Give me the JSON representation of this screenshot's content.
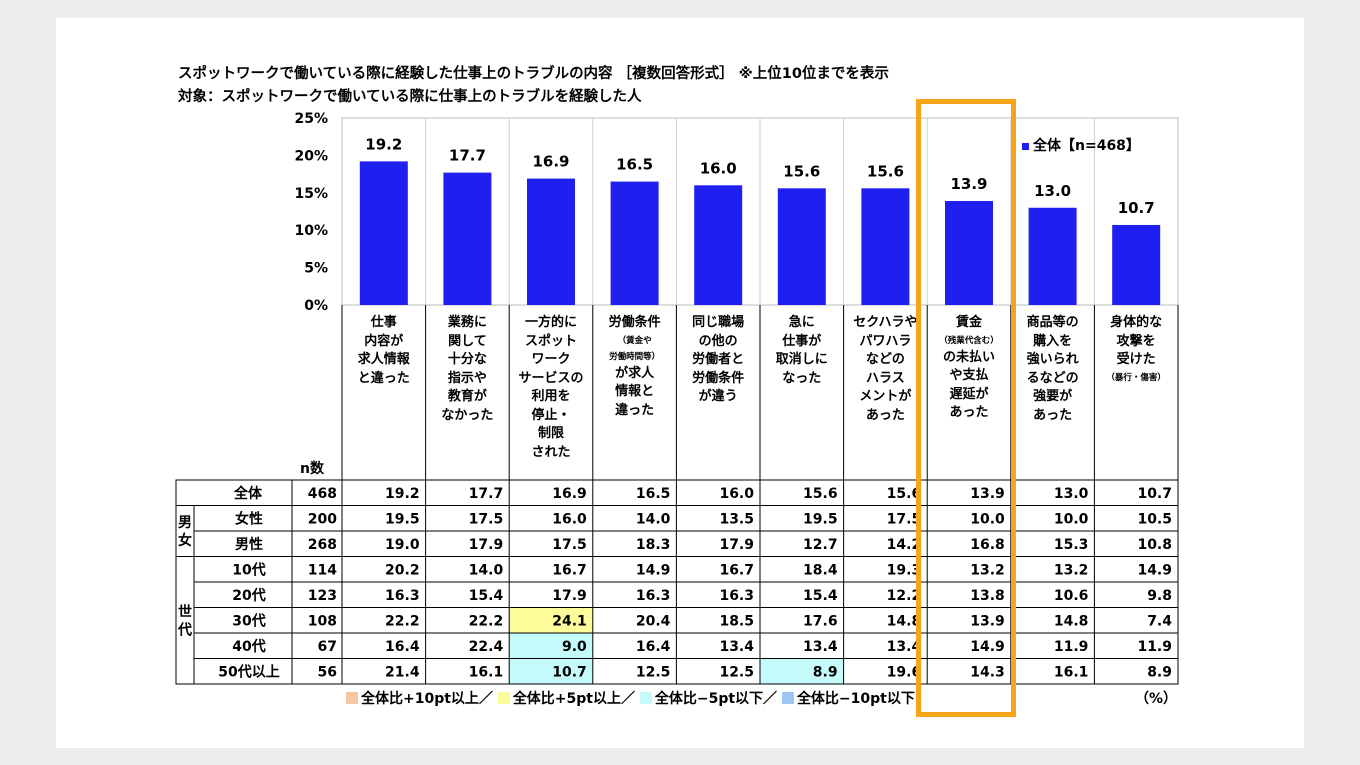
{
  "titles": {
    "line1": "スポットワークで働いている際に経験した仕事上のトラブルの内容 ［複数回答形式］ ※上位10位までを表示",
    "line2": "対象：スポットワークで働いている際に仕事上のトラブルを経験した人"
  },
  "chart_data": {
    "type": "bar",
    "ylim": [
      0,
      25
    ],
    "yticks": [
      "0%",
      "5%",
      "10%",
      "15%",
      "20%",
      "25%"
    ],
    "bar_color": "#1f1ff0",
    "grid": true,
    "legend_position": "top-right",
    "series": [
      {
        "name": "全体【n=468】",
        "values": [
          19.2,
          17.7,
          16.9,
          16.5,
          16.0,
          15.6,
          15.6,
          13.9,
          13.0,
          10.7
        ]
      }
    ],
    "value_labels": [
      "19.2",
      "17.7",
      "16.9",
      "16.5",
      "16.0",
      "15.6",
      "15.6",
      "13.9",
      "13.0",
      "10.7"
    ],
    "categories": [
      {
        "main": "仕事\n内容が\n求人情報\nと違った",
        "sub": "",
        "rest": ""
      },
      {
        "main": "業務に\n関して\n十分な\n指示や\n教育が\nなかった",
        "sub": "",
        "rest": ""
      },
      {
        "main": "一方的に\nスポット\nワーク\nサービスの\n利用を\n停止・\n制限\nされた",
        "sub": "",
        "rest": ""
      },
      {
        "main": "労働条件",
        "sub": "（賃金や\n労働時間等）",
        "rest": "が求人\n情報と\n違った"
      },
      {
        "main": "同じ職場\nの他の\n労働者と\n労働条件\nが違う",
        "sub": "",
        "rest": ""
      },
      {
        "main": "急に\n仕事が\n取消しに\nなった",
        "sub": "",
        "rest": ""
      },
      {
        "main": "セクハラや\nパワハラ\nなどの\nハラス\nメントが\nあった",
        "sub": "",
        "rest": ""
      },
      {
        "main": "賃金",
        "sub": "（残業代含む）",
        "rest": "の未払い\nや支払\n遅延が\nあった"
      },
      {
        "main": "商品等の\n購入を\n強いられ\nるなどの\n強要が\nあった",
        "sub": "",
        "rest": ""
      },
      {
        "main": "身体的な\n攻撃を\n受けた",
        "sub": "（暴行・傷害）",
        "rest": ""
      }
    ],
    "table": {
      "n_header": "n数",
      "rows": [
        {
          "group": "",
          "label": "全体",
          "n": "468",
          "values": [
            "19.2",
            "17.7",
            "16.9",
            "16.5",
            "16.0",
            "15.6",
            "15.6",
            "13.9",
            "13.0",
            "10.7"
          ]
        },
        {
          "group": "男女",
          "label": "女性",
          "n": "200",
          "values": [
            "19.5",
            "17.5",
            "16.0",
            "14.0",
            "13.5",
            "19.5",
            "17.5",
            "10.0",
            "10.0",
            "10.5"
          ]
        },
        {
          "group": "男女",
          "label": "男性",
          "n": "268",
          "values": [
            "19.0",
            "17.9",
            "17.5",
            "18.3",
            "17.9",
            "12.7",
            "14.2",
            "16.8",
            "15.3",
            "10.8"
          ]
        },
        {
          "group": "世代",
          "label": "10代",
          "n": "114",
          "values": [
            "20.2",
            "14.0",
            "16.7",
            "14.9",
            "16.7",
            "18.4",
            "19.3",
            "13.2",
            "13.2",
            "14.9"
          ]
        },
        {
          "group": "世代",
          "label": "20代",
          "n": "123",
          "values": [
            "16.3",
            "15.4",
            "17.9",
            "16.3",
            "16.3",
            "15.4",
            "12.2",
            "13.8",
            "10.6",
            "9.8"
          ]
        },
        {
          "group": "世代",
          "label": "30代",
          "n": "108",
          "values": [
            "22.2",
            "22.2",
            "24.1",
            "20.4",
            "18.5",
            "17.6",
            "14.8",
            "13.9",
            "14.8",
            "7.4"
          ]
        },
        {
          "group": "世代",
          "label": "40代",
          "n": "67",
          "values": [
            "16.4",
            "22.4",
            "9.0",
            "16.4",
            "13.4",
            "13.4",
            "13.4",
            "14.9",
            "11.9",
            "11.9"
          ]
        },
        {
          "group": "世代",
          "label": "50代以上",
          "n": "56",
          "values": [
            "21.4",
            "16.1",
            "10.7",
            "12.5",
            "12.5",
            "8.9",
            "19.6",
            "14.3",
            "16.1",
            "8.9"
          ]
        }
      ],
      "highlights": [
        {
          "row": 5,
          "col": 2,
          "color": "#fcfc9a"
        },
        {
          "row": 6,
          "col": 2,
          "color": "#c4fafa"
        },
        {
          "row": 7,
          "col": 2,
          "color": "#c4fafa"
        },
        {
          "row": 7,
          "col": 5,
          "color": "#c4fafa"
        }
      ]
    }
  },
  "legend": {
    "series_label": "全体【n=468】"
  },
  "key": [
    {
      "text": "全体比+10pt以上／",
      "color": "#f8c7a0"
    },
    {
      "text": "全体比+5pt以上／",
      "color": "#fcfc9a"
    },
    {
      "text": "全体比−5pt以下／",
      "color": "#c4fafa"
    },
    {
      "text": "全体比−10pt以下",
      "color": "#9fc6f2"
    }
  ],
  "unit": "（%）",
  "highlight_color": "#f7a418"
}
